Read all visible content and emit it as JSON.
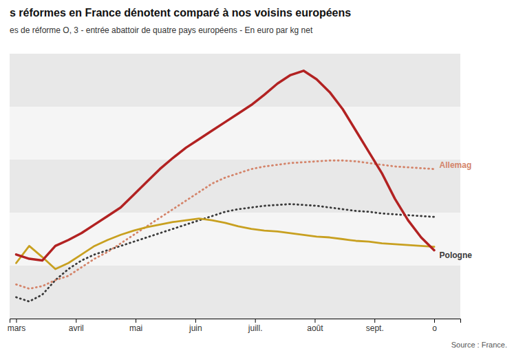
{
  "chart_data": {
    "type": "line",
    "title": "s réformes en France dénotent comparé à nos voisins européens",
    "subtitle": "es de réforme O, 3 - entrée abattoir de quatre pays européens - En euro par kg net",
    "source": "Source : France.",
    "x": [
      0,
      1,
      2,
      3,
      4,
      5,
      6,
      7,
      8,
      9,
      10,
      11,
      12,
      13,
      14,
      15,
      16,
      17,
      18,
      19,
      20,
      21,
      22,
      23,
      24,
      25,
      26,
      27,
      28,
      29,
      30,
      31,
      32
    ],
    "xlim": [
      -0.5,
      34
    ],
    "xticks": [
      {
        "value": 0,
        "label": "mars"
      },
      {
        "value": 4.571428571428571,
        "label": "avril"
      },
      {
        "value": 9.142857142857142,
        "label": "mai"
      },
      {
        "value": 13.714285714285714,
        "label": "juin"
      },
      {
        "value": 18.285714285714285,
        "label": "juill."
      },
      {
        "value": 22.857142857142858,
        "label": "août"
      },
      {
        "value": 27.428571428571427,
        "label": "sept."
      },
      {
        "value": 32,
        "label": "o"
      }
    ],
    "ylim": [
      2.8,
      5.9
    ],
    "yticks": [
      2.8,
      3.42,
      4.04,
      4.66,
      5.28,
      5.9
    ],
    "grid": true,
    "tick_labels": "x",
    "series": [
      {
        "color": "#3a3a3a",
        "line_style": "dotted",
        "values": [
          3.05,
          3.0,
          3.08,
          3.25,
          3.38,
          3.48,
          3.55,
          3.6,
          3.65,
          3.7,
          3.75,
          3.8,
          3.85,
          3.9,
          3.95,
          4.0,
          4.05,
          4.08,
          4.1,
          4.12,
          4.13,
          4.14,
          4.13,
          4.12,
          4.1,
          4.08,
          4.06,
          4.05,
          4.03,
          4.02,
          4.01,
          4.0,
          3.99
        ]
      },
      {
        "color": "#d4846a",
        "line_style": "dotted",
        "values": [
          3.2,
          3.15,
          3.18,
          3.25,
          3.3,
          3.4,
          3.5,
          3.58,
          3.68,
          3.78,
          3.88,
          3.98,
          4.08,
          4.18,
          4.28,
          4.38,
          4.45,
          4.5,
          4.55,
          4.58,
          4.6,
          4.62,
          4.63,
          4.64,
          4.65,
          4.65,
          4.64,
          4.62,
          4.6,
          4.58,
          4.57,
          4.56,
          4.55
        ]
      },
      {
        "color": "#c8a020",
        "line_style": "solid",
        "values": [
          3.45,
          3.65,
          3.52,
          3.38,
          3.45,
          3.55,
          3.65,
          3.72,
          3.78,
          3.83,
          3.87,
          3.9,
          3.93,
          3.95,
          3.97,
          3.95,
          3.92,
          3.88,
          3.85,
          3.83,
          3.82,
          3.8,
          3.78,
          3.76,
          3.75,
          3.73,
          3.71,
          3.7,
          3.68,
          3.67,
          3.66,
          3.65,
          3.64
        ]
      },
      {
        "color": "#b22222",
        "line_style": "solid",
        "values": [
          3.55,
          3.5,
          3.48,
          3.65,
          3.72,
          3.8,
          3.9,
          4.0,
          4.1,
          4.25,
          4.4,
          4.55,
          4.68,
          4.8,
          4.9,
          5.0,
          5.1,
          5.2,
          5.3,
          5.42,
          5.55,
          5.65,
          5.7,
          5.6,
          5.45,
          5.25,
          5.0,
          4.75,
          4.5,
          4.2,
          3.95,
          3.75,
          3.6
        ]
      }
    ],
    "annotations": [
      {
        "text": "Allemag",
        "color": "#d4846a",
        "x": 32.4,
        "y": 4.6
      },
      {
        "text": "Pologne",
        "color": "#3a3a3a",
        "x": 32.4,
        "y": 3.54
      }
    ]
  }
}
